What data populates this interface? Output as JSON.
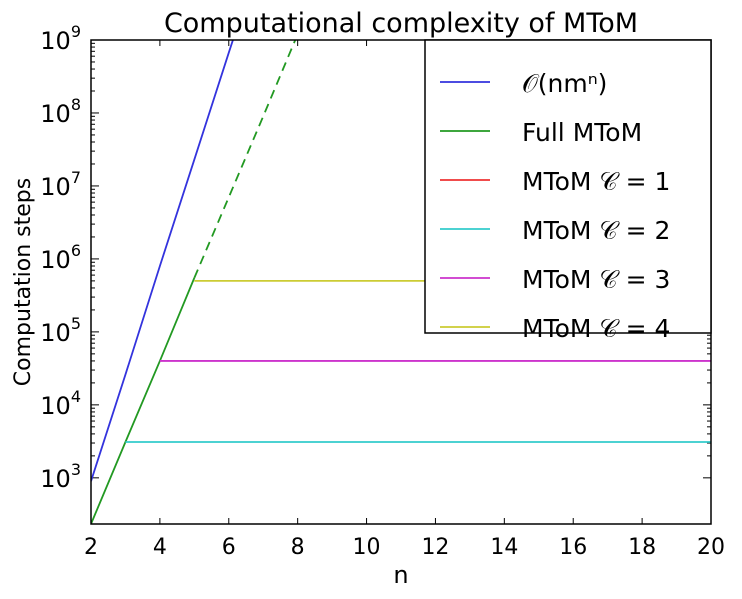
{
  "chart_data": {
    "type": "line",
    "title": "Computational complexity of MToM",
    "xlabel": "n",
    "ylabel": "Computation steps",
    "xlim": [
      2,
      20
    ],
    "ylim": [
      233,
      1000000000
    ],
    "yscale": "log",
    "xticks": [
      "2",
      "4",
      "6",
      "8",
      "10",
      "12",
      "14",
      "16",
      "18",
      "20"
    ],
    "xtick_values": [
      2,
      4,
      6,
      8,
      10,
      12,
      14,
      16,
      18,
      20
    ],
    "yticks": [
      {
        "base": "10",
        "exp": "3"
      },
      {
        "base": "10",
        "exp": "4"
      },
      {
        "base": "10",
        "exp": "5"
      },
      {
        "base": "10",
        "exp": "6"
      },
      {
        "base": "10",
        "exp": "7"
      },
      {
        "base": "10",
        "exp": "8"
      },
      {
        "base": "10",
        "exp": "9"
      }
    ],
    "ytick_values": [
      1000,
      10000,
      100000,
      1000000,
      10000000,
      100000000,
      1000000000
    ],
    "legend_position": "top-right",
    "series": [
      {
        "name": "𝒪(nmⁿ)",
        "color": "#3333dd",
        "dash": false,
        "points": [
          [
            2,
            900
          ],
          [
            3,
            26000
          ],
          [
            4,
            800000
          ],
          [
            5,
            23000000
          ],
          [
            6,
            670000000
          ],
          [
            6.2,
            1300000000
          ]
        ]
      },
      {
        "name": "Full MToM",
        "color": "#229922",
        "dash": false,
        "points": [
          [
            2,
            233
          ],
          [
            3,
            3100
          ],
          [
            4,
            40000
          ],
          [
            5,
            550000
          ]
        ]
      },
      {
        "name": "Full MToM (extrapolated)",
        "legend": false,
        "color": "#229922",
        "dash": true,
        "points": [
          [
            5,
            550000
          ],
          [
            6,
            7000000
          ],
          [
            7,
            90000000
          ],
          [
            8,
            1200000000
          ]
        ]
      },
      {
        "name": "MToM 𝒞 = 1",
        "color": "#ee3333",
        "dash": false,
        "points": []
      },
      {
        "name": "MToM 𝒞 = 2",
        "color": "#33cccc",
        "dash": false,
        "points": [
          [
            3,
            3100
          ],
          [
            20,
            3100
          ]
        ]
      },
      {
        "name": "MToM 𝒞 = 3",
        "color": "#cc33cc",
        "dash": false,
        "points": [
          [
            4,
            40000
          ],
          [
            20,
            40000
          ]
        ]
      },
      {
        "name": "MToM 𝒞 = 4",
        "color": "#cccc33",
        "dash": false,
        "points": [
          [
            5,
            500000
          ],
          [
            20,
            500000
          ]
        ]
      }
    ]
  }
}
